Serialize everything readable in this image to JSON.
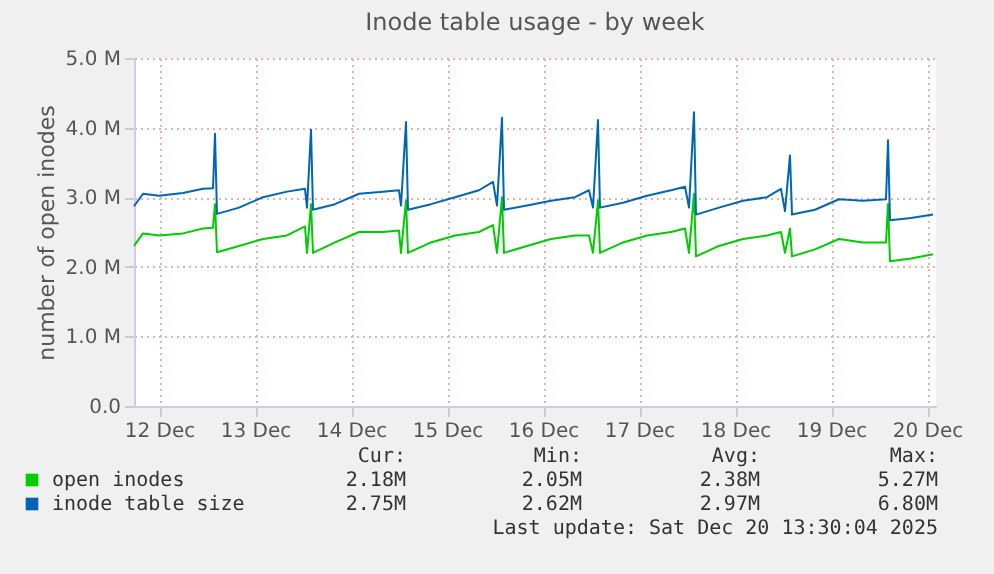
{
  "chart_data": {
    "type": "line",
    "title": "Inode table usage - by week",
    "ylabel": "number of open inodes",
    "xlim": [
      "2025-12-12T05:45",
      "2025-12-20T14:15"
    ],
    "xticks": [
      {
        "value": "2025-12-12T12:00",
        "label": "12 Dec"
      },
      {
        "value": "2025-12-13T12:00",
        "label": "13 Dec"
      },
      {
        "value": "2025-12-14T12:00",
        "label": "14 Dec"
      },
      {
        "value": "2025-12-15T12:00",
        "label": "15 Dec"
      },
      {
        "value": "2025-12-16T12:00",
        "label": "16 Dec"
      },
      {
        "value": "2025-12-17T12:00",
        "label": "17 Dec"
      },
      {
        "value": "2025-12-18T12:00",
        "label": "18 Dec"
      },
      {
        "value": "2025-12-19T12:00",
        "label": "19 Dec"
      },
      {
        "value": "2025-12-20T12:00",
        "label": "20 Dec"
      }
    ],
    "ylim": [
      0,
      5
    ],
    "yticks": [
      {
        "value": 0,
        "label": "0.0"
      },
      {
        "value": 1,
        "label": "1.0 M"
      },
      {
        "value": 2,
        "label": "2.0 M"
      },
      {
        "value": 3,
        "label": "3.0 M"
      },
      {
        "value": 4,
        "label": "4.0 M"
      },
      {
        "value": 5,
        "label": "5.0 M"
      }
    ],
    "grid": true,
    "legend": "bottom",
    "marker": "none",
    "line_style": "solid",
    "series": [
      {
        "name": "open inodes",
        "color": "#00cc00",
        "x": [
          "2025-12-12T05:45",
          "2025-12-12T08:00",
          "2025-12-12T12:00",
          "2025-12-12T18:00",
          "2025-12-12T23:00",
          "2025-12-13T01:30",
          "2025-12-13T02:00",
          "2025-12-13T02:30",
          "2025-12-13T08:00",
          "2025-12-13T14:00",
          "2025-12-13T20:00",
          "2025-12-14T00:30",
          "2025-12-14T01:00",
          "2025-12-14T02:00",
          "2025-12-14T02:30",
          "2025-12-14T08:00",
          "2025-12-14T14:00",
          "2025-12-14T20:00",
          "2025-12-15T00:00",
          "2025-12-15T00:30",
          "2025-12-15T01:45",
          "2025-12-15T02:15",
          "2025-12-15T08:00",
          "2025-12-15T14:00",
          "2025-12-15T20:00",
          "2025-12-15T23:30",
          "2025-12-16T00:30",
          "2025-12-16T01:45",
          "2025-12-16T02:15",
          "2025-12-16T08:00",
          "2025-12-16T14:00",
          "2025-12-16T20:00",
          "2025-12-16T23:30",
          "2025-12-17T00:30",
          "2025-12-17T01:45",
          "2025-12-17T02:15",
          "2025-12-17T08:00",
          "2025-12-17T14:00",
          "2025-12-17T20:00",
          "2025-12-17T23:30",
          "2025-12-18T00:30",
          "2025-12-18T01:45",
          "2025-12-18T02:15",
          "2025-12-18T08:00",
          "2025-12-18T14:00",
          "2025-12-18T20:00",
          "2025-12-18T23:30",
          "2025-12-19T00:30",
          "2025-12-19T01:45",
          "2025-12-19T02:15",
          "2025-12-19T08:00",
          "2025-12-19T14:00",
          "2025-12-19T20:00",
          "2025-12-20T01:45",
          "2025-12-20T02:15",
          "2025-12-20T02:45",
          "2025-12-20T08:00",
          "2025-12-20T13:30"
        ],
        "values": [
          2.3,
          2.48,
          2.45,
          2.48,
          2.55,
          2.56,
          2.9,
          2.21,
          2.3,
          2.4,
          2.45,
          2.58,
          2.2,
          2.9,
          2.2,
          2.35,
          2.5,
          2.5,
          2.52,
          2.2,
          2.95,
          2.2,
          2.35,
          2.45,
          2.5,
          2.6,
          2.2,
          3.0,
          2.2,
          2.3,
          2.4,
          2.45,
          2.45,
          2.2,
          2.95,
          2.2,
          2.35,
          2.45,
          2.5,
          2.55,
          2.2,
          3.05,
          2.15,
          2.3,
          2.4,
          2.45,
          2.5,
          2.2,
          2.55,
          2.15,
          2.25,
          2.4,
          2.35,
          2.35,
          2.9,
          2.08,
          2.12,
          2.18
        ]
      },
      {
        "name": "inode table size",
        "color": "#0066b3",
        "x": [
          "2025-12-12T05:45",
          "2025-12-12T08:00",
          "2025-12-12T12:00",
          "2025-12-12T18:00",
          "2025-12-12T23:00",
          "2025-12-13T01:30",
          "2025-12-13T02:00",
          "2025-12-13T02:30",
          "2025-12-13T08:00",
          "2025-12-13T14:00",
          "2025-12-13T20:00",
          "2025-12-14T00:30",
          "2025-12-14T01:00",
          "2025-12-14T02:00",
          "2025-12-14T02:30",
          "2025-12-14T08:00",
          "2025-12-14T14:00",
          "2025-12-14T20:00",
          "2025-12-15T00:00",
          "2025-12-15T00:30",
          "2025-12-15T01:45",
          "2025-12-15T02:15",
          "2025-12-15T08:00",
          "2025-12-15T14:00",
          "2025-12-15T20:00",
          "2025-12-15T23:30",
          "2025-12-16T00:30",
          "2025-12-16T01:45",
          "2025-12-16T02:15",
          "2025-12-16T08:00",
          "2025-12-16T14:00",
          "2025-12-16T20:00",
          "2025-12-16T23:30",
          "2025-12-17T00:30",
          "2025-12-17T01:45",
          "2025-12-17T02:15",
          "2025-12-17T08:00",
          "2025-12-17T14:00",
          "2025-12-17T20:00",
          "2025-12-17T23:30",
          "2025-12-18T00:30",
          "2025-12-18T01:45",
          "2025-12-18T02:15",
          "2025-12-18T08:00",
          "2025-12-18T14:00",
          "2025-12-18T20:00",
          "2025-12-18T23:30",
          "2025-12-19T00:30",
          "2025-12-19T01:45",
          "2025-12-19T02:15",
          "2025-12-19T08:00",
          "2025-12-19T14:00",
          "2025-12-19T20:00",
          "2025-12-20T01:45",
          "2025-12-20T02:15",
          "2025-12-20T02:45",
          "2025-12-20T08:00",
          "2025-12-20T13:30"
        ],
        "values": [
          2.87,
          3.05,
          3.02,
          3.06,
          3.12,
          3.13,
          3.91,
          2.76,
          2.85,
          3.0,
          3.08,
          3.12,
          2.85,
          3.97,
          2.82,
          2.9,
          3.05,
          3.08,
          3.1,
          2.88,
          4.08,
          2.82,
          2.9,
          3.0,
          3.1,
          3.22,
          2.88,
          4.14,
          2.82,
          2.88,
          2.95,
          3.0,
          3.1,
          2.85,
          4.11,
          2.85,
          2.92,
          3.02,
          3.1,
          3.15,
          2.85,
          4.22,
          2.75,
          2.85,
          2.95,
          3.0,
          3.12,
          2.8,
          3.6,
          2.75,
          2.82,
          2.97,
          2.95,
          2.97,
          3.82,
          2.67,
          2.7,
          2.75
        ]
      }
    ],
    "annotations": [
      "Cur:",
      "Min:",
      "Avg:",
      "Max:",
      "2.18M",
      "2.05M",
      "2.38M",
      "5.27M",
      "2.75M",
      "2.62M",
      "2.97M",
      "6.80M",
      "Last update: Sat Dec 20 13:30:04 2025"
    ]
  }
}
